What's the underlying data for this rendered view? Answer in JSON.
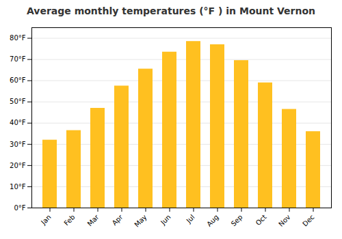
{
  "chart_data": {
    "type": "bar",
    "title": "Average monthly temperatures (°F ) in Mount Vernon",
    "categories": [
      "Jan",
      "Feb",
      "Mar",
      "Apr",
      "May",
      "Jun",
      "Jul",
      "Aug",
      "Sep",
      "Oct",
      "Nov",
      "Dec"
    ],
    "values": [
      32,
      36.5,
      47,
      57.5,
      65.5,
      73.5,
      78.5,
      77,
      69.5,
      59,
      46.5,
      36
    ],
    "color": "#FFC020",
    "ylim": [
      0,
      85
    ],
    "yticks": [
      {
        "value": 0,
        "label": "0°F"
      },
      {
        "value": 10,
        "label": "10°F"
      },
      {
        "value": 20,
        "label": "20°F"
      },
      {
        "value": 30,
        "label": "30°F"
      },
      {
        "value": 40,
        "label": "40°F"
      },
      {
        "value": 50,
        "label": "50°F"
      },
      {
        "value": 60,
        "label": "60°F"
      },
      {
        "value": 70,
        "label": "70°F"
      },
      {
        "value": 80,
        "label": "80°F"
      }
    ],
    "grid": true
  }
}
